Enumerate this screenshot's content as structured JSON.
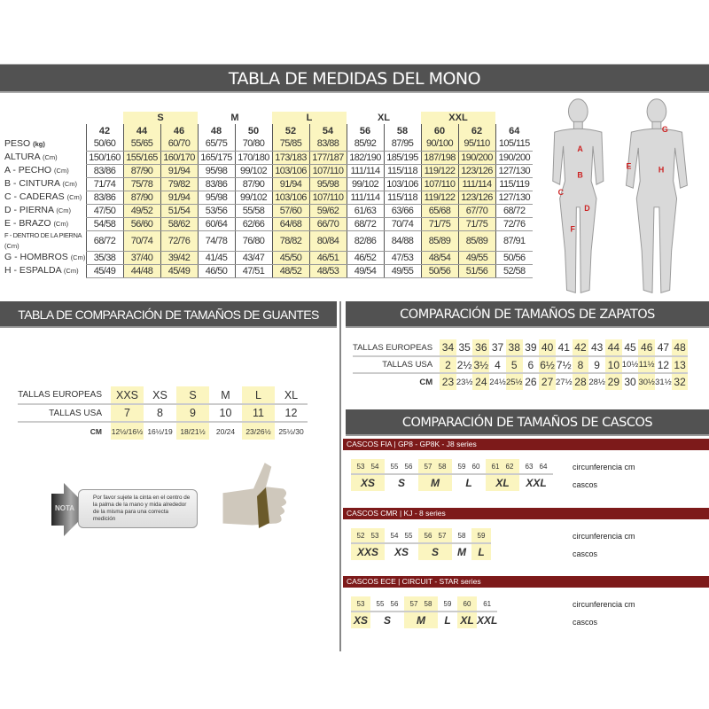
{
  "title": "TABLA DE MEDIDAS DEL MONO",
  "suit": {
    "groups": [
      {
        "label": "",
        "span": 1,
        "y": false
      },
      {
        "label": "S",
        "span": 2,
        "y": true
      },
      {
        "label": "M",
        "span": 2,
        "y": false
      },
      {
        "label": "L",
        "span": 2,
        "y": true
      },
      {
        "label": "XL",
        "span": 2,
        "y": false
      },
      {
        "label": "XXL",
        "span": 2,
        "y": true
      },
      {
        "label": "",
        "span": 1,
        "y": false
      }
    ],
    "sizes": [
      "42",
      "44",
      "46",
      "48",
      "50",
      "52",
      "54",
      "56",
      "58",
      "60",
      "62",
      "64"
    ],
    "rows": [
      {
        "label": "PESO",
        "unit": "(kg)",
        "values": [
          "50/60",
          "55/65",
          "60/70",
          "65/75",
          "70/80",
          "75/85",
          "83/88",
          "85/92",
          "87/95",
          "90/100",
          "95/110",
          "105/115"
        ]
      },
      {
        "label": "ALTURA",
        "unit": "(Cm)",
        "values": [
          "150/160",
          "155/165",
          "160/170",
          "165/175",
          "170/180",
          "173/183",
          "177/187",
          "182/190",
          "185/195",
          "187/198",
          "190/200",
          "190/200"
        ]
      },
      {
        "label": "A - PECHO",
        "unit": "(Cm)",
        "values": [
          "83/86",
          "87/90",
          "91/94",
          "95/98",
          "99/102",
          "103/106",
          "107/110",
          "111/114",
          "115/118",
          "119/122",
          "123/126",
          "127/130"
        ]
      },
      {
        "label": "B - CINTURA",
        "unit": "(Cm)",
        "values": [
          "71/74",
          "75/78",
          "79/82",
          "83/86",
          "87/90",
          "91/94",
          "95/98",
          "99/102",
          "103/106",
          "107/110",
          "111/114",
          "115/119"
        ]
      },
      {
        "label": "C - CADERAS",
        "unit": "(Cm)",
        "values": [
          "83/86",
          "87/90",
          "91/94",
          "95/98",
          "99/102",
          "103/106",
          "107/110",
          "111/114",
          "115/118",
          "119/122",
          "123/126",
          "127/130"
        ]
      },
      {
        "label": "D - PIERNA",
        "unit": "(Cm)",
        "values": [
          "47/50",
          "49/52",
          "51/54",
          "53/56",
          "55/58",
          "57/60",
          "59/62",
          "61/63",
          "63/66",
          "65/68",
          "67/70",
          "68/72"
        ]
      },
      {
        "label": "E - BRAZO",
        "unit": "(Cm)",
        "values": [
          "54/58",
          "56/60",
          "58/62",
          "60/64",
          "62/66",
          "64/68",
          "66/70",
          "68/72",
          "70/74",
          "71/75",
          "71/75",
          "72/76"
        ]
      },
      {
        "label": "F - DENTRO DE LA PIERNA",
        "unit": "(Cm)",
        "values": [
          "68/72",
          "70/74",
          "72/76",
          "74/78",
          "76/80",
          "78/82",
          "80/84",
          "82/86",
          "84/88",
          "85/89",
          "85/89",
          "87/91"
        ]
      },
      {
        "label": "G - HOMBROS",
        "unit": "(Cm)",
        "values": [
          "35/38",
          "37/40",
          "39/42",
          "41/45",
          "43/47",
          "45/50",
          "46/51",
          "46/52",
          "47/53",
          "48/54",
          "49/55",
          "50/56"
        ]
      },
      {
        "label": "H - ESPALDA",
        "unit": "(Cm)",
        "values": [
          "45/49",
          "44/48",
          "45/49",
          "46/50",
          "47/51",
          "48/52",
          "48/53",
          "49/54",
          "49/55",
          "50/56",
          "51/56",
          "52/58"
        ]
      }
    ],
    "body_letters_front": [
      "A",
      "B",
      "C",
      "D",
      "F"
    ],
    "body_letters_back": [
      "G",
      "E",
      "H"
    ]
  },
  "gloves": {
    "title": "TABLA DE COMPARACIÓN DE TAMAÑOS DE GUANTES",
    "eu_label": "TALLAS EUROPEAS",
    "usa_label": "TALLAS USA",
    "cm_label": "CM",
    "eu": [
      "XXS",
      "XS",
      "S",
      "M",
      "L",
      "XL"
    ],
    "usa": [
      "7",
      "8",
      "9",
      "10",
      "11",
      "12"
    ],
    "cm": [
      "12½/16½",
      "16½/19",
      "18/21½",
      "20/24",
      "23/26½",
      "25½/30"
    ],
    "highlight": [
      true,
      false,
      true,
      false,
      true,
      false
    ],
    "note_tag": "NOTA",
    "note": "Por favor sujete la cinta en el centro de la palma de la mano y mida alrededor de la misma para una correcta medición"
  },
  "shoes": {
    "title": "COMPARACIÓN DE TAMAÑOS DE ZAPATOS",
    "eu_label": "TALLAS EUROPEAS",
    "usa_label": "TALLAS USA",
    "cm_label": "CM",
    "eu": [
      "34",
      "35",
      "36",
      "37",
      "38",
      "39",
      "40",
      "41",
      "42",
      "43",
      "44",
      "45",
      "46",
      "47",
      "48"
    ],
    "usa": [
      "2",
      "2½",
      "3½",
      "4",
      "5",
      "6",
      "6½",
      "7½",
      "8",
      "9",
      "10",
      "10½",
      "11½",
      "12",
      "13"
    ],
    "cm": [
      "23",
      "23½",
      "24",
      "24½",
      "25½",
      "26",
      "27",
      "27½",
      "28",
      "28½",
      "29",
      "30",
      "30½",
      "31½",
      "32"
    ]
  },
  "helmets": {
    "title": "COMPARACIÓN DE TAMAÑOS DE CASCOS",
    "circ_label": "circunferencia cm",
    "size_label": "cascos",
    "series": [
      {
        "name": "CASCOS FIA  |  GP8 - GP8K - J8 series",
        "groups": [
          {
            "size": "XS",
            "cm": [
              "53",
              "54"
            ]
          },
          {
            "size": "S",
            "cm": [
              "55",
              "56"
            ]
          },
          {
            "size": "M",
            "cm": [
              "57",
              "58"
            ]
          },
          {
            "size": "L",
            "cm": [
              "59",
              "60"
            ]
          },
          {
            "size": "XL",
            "cm": [
              "61",
              "62"
            ]
          },
          {
            "size": "XXL",
            "cm": [
              "63",
              "64"
            ]
          }
        ]
      },
      {
        "name": "CASCOS CMR  |  KJ - 8 series",
        "groups": [
          {
            "size": "XXS",
            "cm": [
              "52",
              "53"
            ]
          },
          {
            "size": "XS",
            "cm": [
              "54",
              "55"
            ]
          },
          {
            "size": "S",
            "cm": [
              "56",
              "57"
            ]
          },
          {
            "size": "M",
            "cm": [
              "58"
            ]
          },
          {
            "size": "L",
            "cm": [
              "59"
            ]
          }
        ]
      },
      {
        "name": "CASCOS ECE  |  CIRCUIT - STAR series",
        "groups": [
          {
            "size": "XS",
            "cm": [
              "53"
            ]
          },
          {
            "size": "S",
            "cm": [
              "55",
              "56"
            ]
          },
          {
            "size": "M",
            "cm": [
              "57",
              "58"
            ]
          },
          {
            "size": "L",
            "cm": [
              "59"
            ]
          },
          {
            "size": "XL",
            "cm": [
              "60"
            ]
          },
          {
            "size": "XXL",
            "cm": [
              "61"
            ]
          }
        ]
      }
    ]
  },
  "colors": {
    "header": "#525252",
    "highlight": "#fbf5c0",
    "helmet_bar": "#7d1a1a"
  }
}
